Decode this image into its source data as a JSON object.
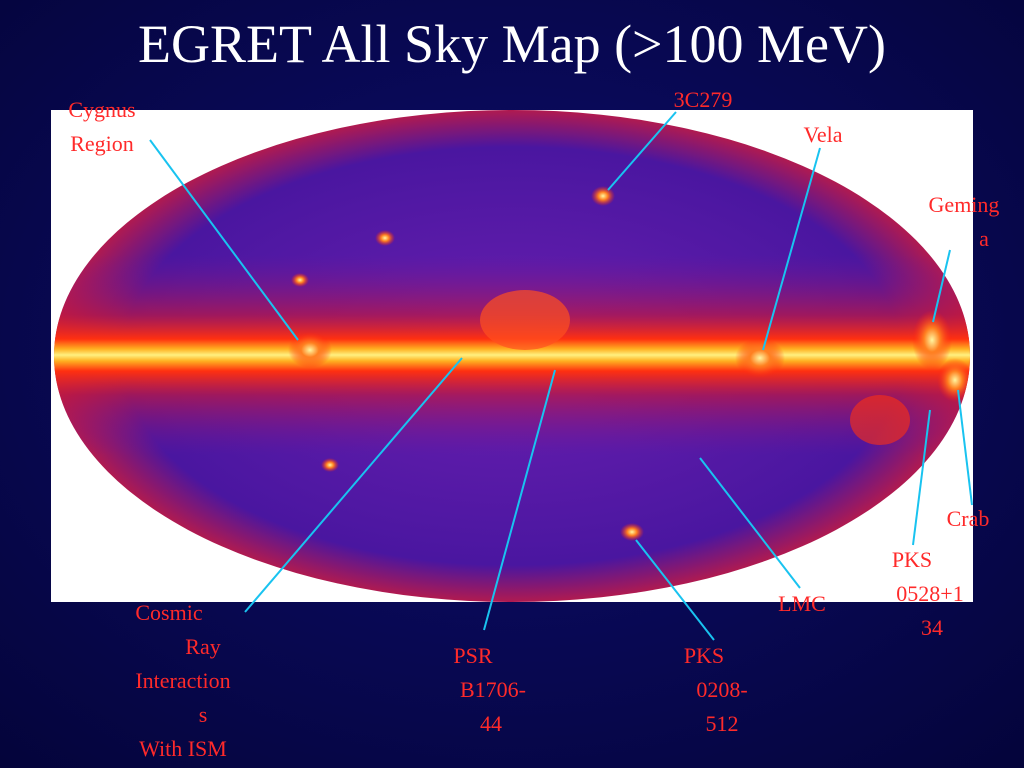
{
  "title": "EGRET All Sky Map (>100 MeV)",
  "labels": [
    {
      "lines": [
        "Cygnus",
        "Region"
      ]
    },
    {
      "lines": [
        "3C279"
      ]
    },
    {
      "lines": [
        "Vela"
      ]
    },
    {
      "lines": [
        "Geming",
        "a"
      ]
    },
    {
      "lines": [
        "Crab"
      ]
    },
    {
      "lines": [
        "PKS",
        "0528+1",
        "34"
      ]
    },
    {
      "lines": [
        "LMC"
      ]
    },
    {
      "lines": [
        "PKS",
        "0208-",
        "512"
      ]
    },
    {
      "lines": [
        "PSR",
        "B1706-",
        "44"
      ]
    },
    {
      "lines": [
        "Cosmic",
        "Ray",
        "Interaction",
        "s",
        "With ISM"
      ]
    }
  ]
}
